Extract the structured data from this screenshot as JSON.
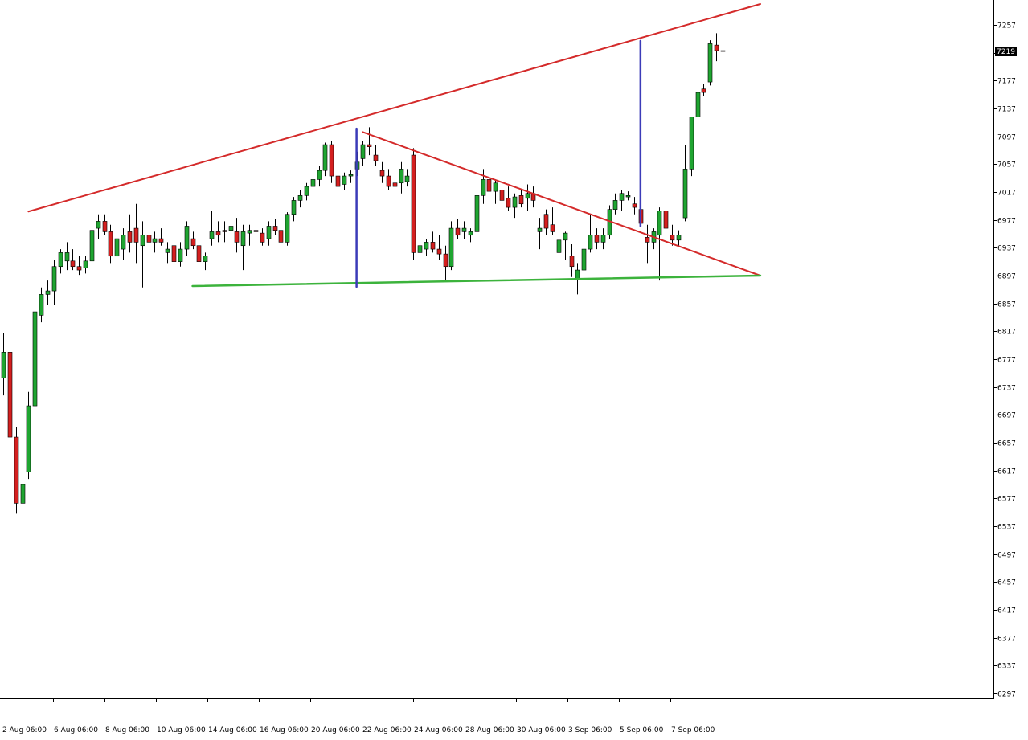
{
  "chart_data": {
    "type": "candlestick",
    "title": "",
    "xlabel": "",
    "ylabel": "",
    "ylim": [
      6287,
      7287
    ],
    "y_ticks": [
      7257,
      7217,
      7177,
      7137,
      7097,
      7057,
      7017,
      6977,
      6937,
      6897,
      6857,
      6817,
      6777,
      6737,
      6697,
      6657,
      6617,
      6577,
      6537,
      6497,
      6457,
      6417,
      6377,
      6337,
      6297
    ],
    "x_tick_labels": [
      "2 Aug 06:00",
      "6 Aug 06:00",
      "8 Aug 06:00",
      "10 Aug 06:00",
      "14 Aug 06:00",
      "16 Aug 06:00",
      "20 Aug 06:00",
      "22 Aug 06:00",
      "24 Aug 06:00",
      "28 Aug 06:00",
      "30 Aug 06:00",
      "3 Sep 06:00",
      "5 Sep 06:00",
      "7 Sep 06:00"
    ],
    "current_price": "7219",
    "grid": false,
    "colors": {
      "bull": "#1fa531",
      "bear": "#d41f1f",
      "wick": "#000000",
      "resistance": "#d42a2a",
      "support": "#3cb33c",
      "marker": "#3b3bb8",
      "price_box": "#000000"
    },
    "candles": [
      {
        "o": 6750,
        "h": 6815,
        "l": 6725,
        "c": 6787
      },
      {
        "o": 6787,
        "h": 6860,
        "l": 6640,
        "c": 6665
      },
      {
        "o": 6665,
        "h": 6680,
        "l": 6555,
        "c": 6570
      },
      {
        "o": 6570,
        "h": 6605,
        "l": 6565,
        "c": 6597
      },
      {
        "o": 6615,
        "h": 6730,
        "l": 6605,
        "c": 6710
      },
      {
        "o": 6710,
        "h": 6850,
        "l": 6700,
        "c": 6845
      },
      {
        "o": 6840,
        "h": 6880,
        "l": 6830,
        "c": 6870
      },
      {
        "o": 6870,
        "h": 6890,
        "l": 6855,
        "c": 6875
      },
      {
        "o": 6875,
        "h": 6920,
        "l": 6855,
        "c": 6910
      },
      {
        "o": 6910,
        "h": 6935,
        "l": 6900,
        "c": 6930
      },
      {
        "o": 6918,
        "h": 6945,
        "l": 6905,
        "c": 6930
      },
      {
        "o": 6918,
        "h": 6935,
        "l": 6905,
        "c": 6910
      },
      {
        "o": 6910,
        "h": 6925,
        "l": 6898,
        "c": 6905
      },
      {
        "o": 6908,
        "h": 6925,
        "l": 6900,
        "c": 6918
      },
      {
        "o": 6918,
        "h": 6975,
        "l": 6910,
        "c": 6962
      },
      {
        "o": 6965,
        "h": 6985,
        "l": 6950,
        "c": 6975
      },
      {
        "o": 6975,
        "h": 6985,
        "l": 6955,
        "c": 6960
      },
      {
        "o": 6960,
        "h": 6970,
        "l": 6915,
        "c": 6925
      },
      {
        "o": 6925,
        "h": 6962,
        "l": 6910,
        "c": 6950
      },
      {
        "o": 6935,
        "h": 6965,
        "l": 6920,
        "c": 6955
      },
      {
        "o": 6960,
        "h": 6985,
        "l": 6930,
        "c": 6945
      },
      {
        "o": 6965,
        "h": 7000,
        "l": 6915,
        "c": 6945
      },
      {
        "o": 6940,
        "h": 6975,
        "l": 6880,
        "c": 6955
      },
      {
        "o": 6955,
        "h": 6970,
        "l": 6940,
        "c": 6945
      },
      {
        "o": 6945,
        "h": 6960,
        "l": 6930,
        "c": 6950
      },
      {
        "o": 6950,
        "h": 6965,
        "l": 6940,
        "c": 6945
      },
      {
        "o": 6930,
        "h": 6945,
        "l": 6915,
        "c": 6935
      },
      {
        "o": 6940,
        "h": 6950,
        "l": 6890,
        "c": 6917
      },
      {
        "o": 6917,
        "h": 6945,
        "l": 6910,
        "c": 6935
      },
      {
        "o": 6935,
        "h": 6975,
        "l": 6925,
        "c": 6968
      },
      {
        "o": 6950,
        "h": 6960,
        "l": 6935,
        "c": 6940
      },
      {
        "o": 6940,
        "h": 6955,
        "l": 6880,
        "c": 6917
      },
      {
        "o": 6917,
        "h": 6930,
        "l": 6905,
        "c": 6925
      },
      {
        "o": 6950,
        "h": 6990,
        "l": 6940,
        "c": 6960
      },
      {
        "o": 6960,
        "h": 6975,
        "l": 6945,
        "c": 6955
      },
      {
        "o": 6962,
        "h": 6975,
        "l": 6945,
        "c": 6960
      },
      {
        "o": 6962,
        "h": 6978,
        "l": 6948,
        "c": 6968
      },
      {
        "o": 6960,
        "h": 6980,
        "l": 6930,
        "c": 6945
      },
      {
        "o": 6940,
        "h": 6970,
        "l": 6905,
        "c": 6960
      },
      {
        "o": 6958,
        "h": 6970,
        "l": 6940,
        "c": 6962
      },
      {
        "o": 6962,
        "h": 6975,
        "l": 6945,
        "c": 6960
      },
      {
        "o": 6958,
        "h": 6965,
        "l": 6940,
        "c": 6945
      },
      {
        "o": 6950,
        "h": 6975,
        "l": 6940,
        "c": 6968
      },
      {
        "o": 6968,
        "h": 6978,
        "l": 6955,
        "c": 6962
      },
      {
        "o": 6962,
        "h": 6968,
        "l": 6935,
        "c": 6945
      },
      {
        "o": 6945,
        "h": 6988,
        "l": 6940,
        "c": 6985
      },
      {
        "o": 6985,
        "h": 7010,
        "l": 6975,
        "c": 7005
      },
      {
        "o": 7005,
        "h": 7020,
        "l": 6995,
        "c": 7012
      },
      {
        "o": 7012,
        "h": 7030,
        "l": 7005,
        "c": 7025
      },
      {
        "o": 7025,
        "h": 7045,
        "l": 7010,
        "c": 7035
      },
      {
        "o": 7035,
        "h": 7055,
        "l": 7025,
        "c": 7048
      },
      {
        "o": 7048,
        "h": 7088,
        "l": 7040,
        "c": 7085
      },
      {
        "o": 7085,
        "h": 7090,
        "l": 7030,
        "c": 7040
      },
      {
        "o": 7040,
        "h": 7052,
        "l": 7015,
        "c": 7025
      },
      {
        "o": 7028,
        "h": 7045,
        "l": 7020,
        "c": 7040
      },
      {
        "o": 7040,
        "h": 7048,
        "l": 7030,
        "c": 7042
      },
      {
        "o": 7050,
        "h": 7075,
        "l": 7040,
        "c": 7060
      },
      {
        "o": 7065,
        "h": 7090,
        "l": 7055,
        "c": 7085
      },
      {
        "o": 7085,
        "h": 7110,
        "l": 7070,
        "c": 7082
      },
      {
        "o": 7070,
        "h": 7085,
        "l": 7055,
        "c": 7062
      },
      {
        "o": 7048,
        "h": 7060,
        "l": 7030,
        "c": 7040
      },
      {
        "o": 7040,
        "h": 7050,
        "l": 7020,
        "c": 7025
      },
      {
        "o": 7030,
        "h": 7045,
        "l": 7015,
        "c": 7025
      },
      {
        "o": 7030,
        "h": 7060,
        "l": 7015,
        "c": 7050
      },
      {
        "o": 7032,
        "h": 7050,
        "l": 7025,
        "c": 7040
      },
      {
        "o": 7070,
        "h": 7080,
        "l": 6920,
        "c": 6930
      },
      {
        "o": 6930,
        "h": 6950,
        "l": 6918,
        "c": 6940
      },
      {
        "o": 6935,
        "h": 6950,
        "l": 6925,
        "c": 6945
      },
      {
        "o": 6945,
        "h": 6960,
        "l": 6930,
        "c": 6935
      },
      {
        "o": 6935,
        "h": 6955,
        "l": 6920,
        "c": 6928
      },
      {
        "o": 6928,
        "h": 6940,
        "l": 6890,
        "c": 6910
      },
      {
        "o": 6910,
        "h": 6975,
        "l": 6905,
        "c": 6965
      },
      {
        "o": 6965,
        "h": 6978,
        "l": 6950,
        "c": 6955
      },
      {
        "o": 6960,
        "h": 6975,
        "l": 6950,
        "c": 6965
      },
      {
        "o": 6955,
        "h": 6965,
        "l": 6945,
        "c": 6960
      },
      {
        "o": 6960,
        "h": 7020,
        "l": 6955,
        "c": 7012
      },
      {
        "o": 7012,
        "h": 7050,
        "l": 7000,
        "c": 7035
      },
      {
        "o": 7035,
        "h": 7045,
        "l": 7010,
        "c": 7018
      },
      {
        "o": 7018,
        "h": 7035,
        "l": 7000,
        "c": 7030
      },
      {
        "o": 7020,
        "h": 7025,
        "l": 6995,
        "c": 7005
      },
      {
        "o": 7008,
        "h": 7025,
        "l": 6990,
        "c": 6995
      },
      {
        "o": 6995,
        "h": 7015,
        "l": 6980,
        "c": 7010
      },
      {
        "o": 7012,
        "h": 7020,
        "l": 6995,
        "c": 7000
      },
      {
        "o": 7008,
        "h": 7028,
        "l": 6990,
        "c": 7015
      },
      {
        "o": 7015,
        "h": 7025,
        "l": 6995,
        "c": 7005
      },
      {
        "o": 6960,
        "h": 6980,
        "l": 6935,
        "c": 6965
      },
      {
        "o": 6985,
        "h": 6992,
        "l": 6955,
        "c": 6965
      },
      {
        "o": 6970,
        "h": 6995,
        "l": 6955,
        "c": 6960
      },
      {
        "o": 6930,
        "h": 6970,
        "l": 6895,
        "c": 6948
      },
      {
        "o": 6948,
        "h": 6960,
        "l": 6920,
        "c": 6958
      },
      {
        "o": 6925,
        "h": 6942,
        "l": 6895,
        "c": 6910
      },
      {
        "o": 6892,
        "h": 6915,
        "l": 6870,
        "c": 6905
      },
      {
        "o": 6905,
        "h": 6960,
        "l": 6900,
        "c": 6935
      },
      {
        "o": 6935,
        "h": 6985,
        "l": 6930,
        "c": 6955
      },
      {
        "o": 6955,
        "h": 6965,
        "l": 6935,
        "c": 6945
      },
      {
        "o": 6945,
        "h": 6965,
        "l": 6935,
        "c": 6955
      },
      {
        "o": 6955,
        "h": 6998,
        "l": 6950,
        "c": 6992
      },
      {
        "o": 6992,
        "h": 7015,
        "l": 6985,
        "c": 7005
      },
      {
        "o": 7005,
        "h": 7020,
        "l": 6990,
        "c": 7015
      },
      {
        "o": 7010,
        "h": 7018,
        "l": 7005,
        "c": 7012
      },
      {
        "o": 7000,
        "h": 7010,
        "l": 6985,
        "c": 6995
      },
      {
        "o": 6992,
        "h": 7005,
        "l": 6960,
        "c": 6972
      },
      {
        "o": 6952,
        "h": 6970,
        "l": 6915,
        "c": 6945
      },
      {
        "o": 6945,
        "h": 6965,
        "l": 6935,
        "c": 6960
      },
      {
        "o": 6955,
        "h": 6995,
        "l": 6890,
        "c": 6990
      },
      {
        "o": 6990,
        "h": 7000,
        "l": 6955,
        "c": 6965
      },
      {
        "o": 6955,
        "h": 6970,
        "l": 6940,
        "c": 6948
      },
      {
        "o": 6948,
        "h": 6962,
        "l": 6940,
        "c": 6955
      },
      {
        "o": 6980,
        "h": 7085,
        "l": 6975,
        "c": 7050
      },
      {
        "o": 7050,
        "h": 7125,
        "l": 7040,
        "c": 7125
      },
      {
        "o": 7125,
        "h": 7165,
        "l": 7120,
        "c": 7160
      },
      {
        "o": 7165,
        "h": 7172,
        "l": 7155,
        "c": 7160
      },
      {
        "o": 7175,
        "h": 7235,
        "l": 7170,
        "c": 7230
      },
      {
        "o": 7228,
        "h": 7245,
        "l": 7205,
        "c": 7220
      },
      {
        "o": 7220,
        "h": 7228,
        "l": 7210,
        "c": 7219
      }
    ],
    "trendlines": [
      {
        "role": "resistance",
        "from": [
          4,
          6989
        ],
        "to": [
          120,
          7287
        ]
      },
      {
        "role": "falling",
        "from": [
          57,
          7103
        ],
        "to": [
          120,
          6897
        ]
      },
      {
        "role": "support",
        "from": [
          30,
          6882
        ],
        "to": [
          120,
          6897
        ]
      },
      {
        "role": "marker",
        "from": [
          56,
          6881
        ],
        "to": [
          56,
          7108
        ]
      },
      {
        "role": "marker",
        "from": [
          101,
          6968
        ],
        "to": [
          101,
          7234
        ]
      }
    ]
  }
}
